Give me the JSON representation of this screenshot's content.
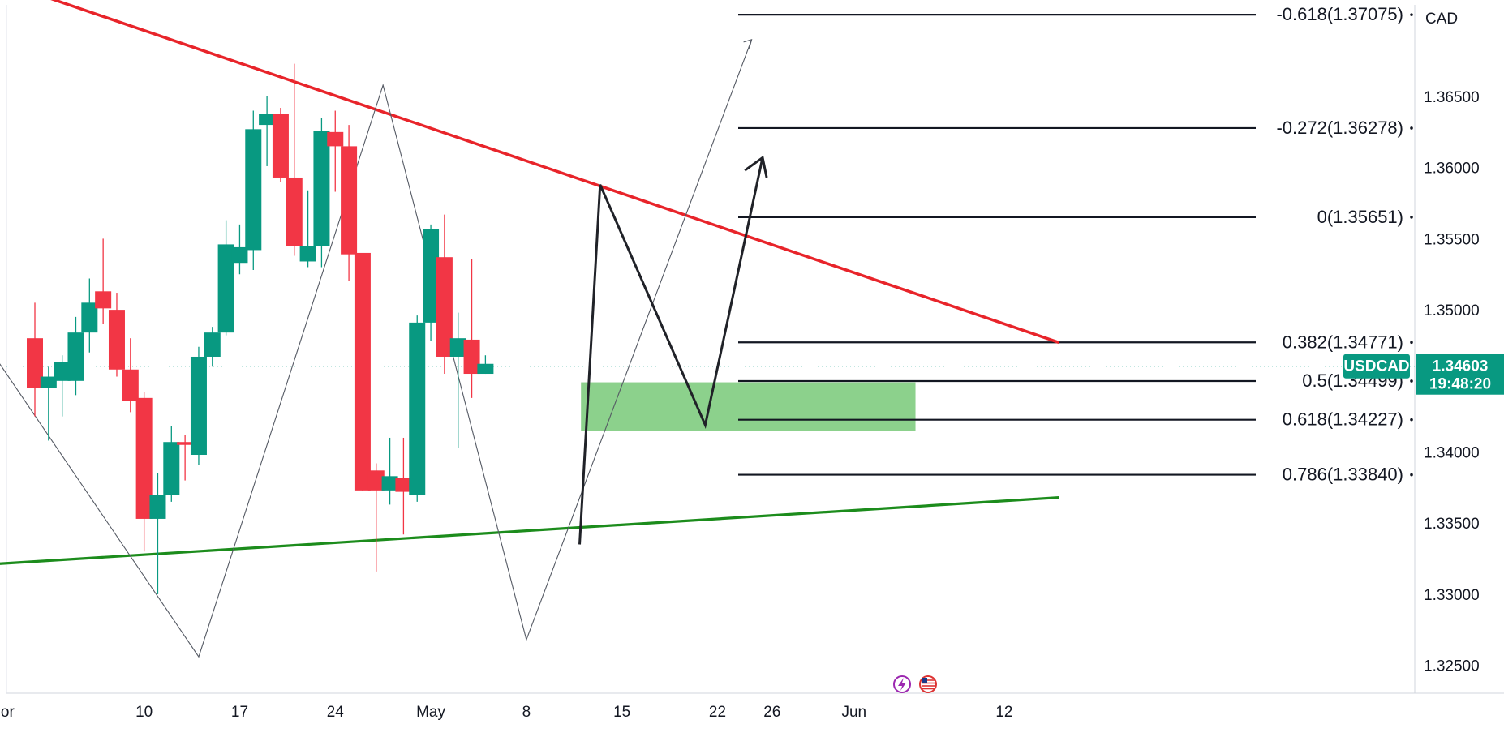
{
  "chart_data": {
    "type": "candlestick",
    "symbol": "USDCAD",
    "currency": "CAD",
    "last_price": "1.34603",
    "countdown": "19:48:20",
    "colors": {
      "up": "#089981",
      "down": "#f23645",
      "resistance": "#e8242a",
      "support": "#1c8c1c",
      "zone": "#5fbf5f",
      "tag": "#089981",
      "line": "#131722"
    },
    "x_ticks": [
      {
        "label": "or",
        "day": -2
      },
      {
        "label": "10",
        "day": 8
      },
      {
        "label": "17",
        "day": 15
      },
      {
        "label": "24",
        "day": 22
      },
      {
        "label": "May",
        "day": 29
      },
      {
        "label": "8",
        "day": 36
      },
      {
        "label": "15",
        "day": 43
      },
      {
        "label": "22",
        "day": 50
      },
      {
        "label": "26",
        "day": 54
      },
      {
        "label": "Jun",
        "day": 60
      },
      {
        "label": "12",
        "day": 71
      }
    ],
    "y_ticks": [
      "1.36500",
      "1.36000",
      "1.35500",
      "1.35000",
      "1.34000",
      "1.33500",
      "1.33000",
      "1.32500"
    ],
    "ylim": [
      1.3215,
      1.373
    ],
    "candles": [
      {
        "o": 1.348,
        "h": 1.3505,
        "l": 1.3425,
        "c": 1.3445
      },
      {
        "o": 1.3445,
        "h": 1.346,
        "l": 1.3408,
        "c": 1.3453
      },
      {
        "o": 1.345,
        "h": 1.3468,
        "l": 1.3425,
        "c": 1.3463
      },
      {
        "o": 1.345,
        "h": 1.3495,
        "l": 1.344,
        "c": 1.3484
      },
      {
        "o": 1.3484,
        "h": 1.3522,
        "l": 1.347,
        "c": 1.3505
      },
      {
        "o": 1.3513,
        "h": 1.355,
        "l": 1.349,
        "c": 1.3501
      },
      {
        "o": 1.35,
        "h": 1.3512,
        "l": 1.3453,
        "c": 1.3458
      },
      {
        "o": 1.3458,
        "h": 1.348,
        "l": 1.3428,
        "c": 1.3436
      },
      {
        "o": 1.3438,
        "h": 1.3442,
        "l": 1.333,
        "c": 1.3353
      },
      {
        "o": 1.3353,
        "h": 1.3385,
        "l": 1.33,
        "c": 1.337
      },
      {
        "o": 1.337,
        "h": 1.3418,
        "l": 1.3365,
        "c": 1.3407
      },
      {
        "o": 1.3407,
        "h": 1.3412,
        "l": 1.338,
        "c": 1.3405
      },
      {
        "o": 1.3398,
        "h": 1.3474,
        "l": 1.3391,
        "c": 1.3467
      },
      {
        "o": 1.3467,
        "h": 1.3488,
        "l": 1.346,
        "c": 1.3484
      },
      {
        "o": 1.3484,
        "h": 1.3563,
        "l": 1.3482,
        "c": 1.3546
      },
      {
        "o": 1.3533,
        "h": 1.356,
        "l": 1.3525,
        "c": 1.3544
      },
      {
        "o": 1.3542,
        "h": 1.364,
        "l": 1.3528,
        "c": 1.3627
      },
      {
        "o": 1.363,
        "h": 1.365,
        "l": 1.3601,
        "c": 1.3638
      },
      {
        "o": 1.3638,
        "h": 1.3642,
        "l": 1.359,
        "c": 1.3593
      },
      {
        "o": 1.3593,
        "h": 1.3673,
        "l": 1.3538,
        "c": 1.3545
      },
      {
        "o": 1.3534,
        "h": 1.3584,
        "l": 1.353,
        "c": 1.3545
      },
      {
        "o": 1.3545,
        "h": 1.3635,
        "l": 1.353,
        "c": 1.3626
      },
      {
        "o": 1.3625,
        "h": 1.364,
        "l": 1.3583,
        "c": 1.3615
      },
      {
        "o": 1.3615,
        "h": 1.363,
        "l": 1.352,
        "c": 1.3539
      },
      {
        "o": 1.354,
        "h": 1.354,
        "l": 1.3373,
        "c": 1.3373
      },
      {
        "o": 1.3387,
        "h": 1.3392,
        "l": 1.3316,
        "c": 1.3373
      },
      {
        "o": 1.3373,
        "h": 1.341,
        "l": 1.3363,
        "c": 1.3383
      },
      {
        "o": 1.3382,
        "h": 1.341,
        "l": 1.3342,
        "c": 1.3372
      },
      {
        "o": 1.337,
        "h": 1.3496,
        "l": 1.3365,
        "c": 1.3491
      },
      {
        "o": 1.3491,
        "h": 1.356,
        "l": 1.3478,
        "c": 1.3557
      },
      {
        "o": 1.3537,
        "h": 1.3567,
        "l": 1.3455,
        "c": 1.3467
      },
      {
        "o": 1.3467,
        "h": 1.3498,
        "l": 1.3403,
        "c": 1.348
      },
      {
        "o": 1.3479,
        "h": 1.3536,
        "l": 1.3438,
        "c": 1.3455
      },
      {
        "o": 1.3455,
        "h": 1.3468,
        "l": 1.3455,
        "c": 1.3462
      }
    ],
    "fib_levels": [
      {
        "label": "-0.618(1.37075)",
        "price": 1.37075
      },
      {
        "label": "-0.272(1.36278)",
        "price": 1.36278
      },
      {
        "label": "0(1.35651)",
        "price": 1.35651
      },
      {
        "label": "0.382(1.34771)",
        "price": 1.34771
      },
      {
        "label": "0.5(1.34499)",
        "price": 1.34499
      },
      {
        "label": "0.618(1.34227)",
        "price": 1.34227
      },
      {
        "label": "0.786(1.33840)",
        "price": 1.3384
      }
    ],
    "zone": {
      "from_day": 40,
      "to_day": 64.5,
      "top": 1.3449,
      "bottom": 1.3415
    },
    "resistance_line": [
      {
        "day": -5,
        "price": 1.3739
      },
      {
        "day": 75,
        "price": 1.3477
      }
    ],
    "support_line": [
      {
        "day": -5,
        "price": 1.332
      },
      {
        "day": 75,
        "price": 1.3368
      }
    ],
    "zigzag": [
      {
        "day": -3,
        "price": 1.3468
      },
      {
        "day": 12,
        "price": 1.3256
      },
      {
        "day": 25.5,
        "price": 1.3658
      },
      {
        "day": 36,
        "price": 1.3268
      },
      {
        "day": 52.5,
        "price": 1.369
      }
    ],
    "projection": [
      {
        "day": 39.9,
        "price": 1.3335
      },
      {
        "day": 41.4,
        "price": 1.3588
      },
      {
        "day": 49.1,
        "price": 1.3419
      },
      {
        "day": 53.3,
        "price": 1.3607
      }
    ],
    "projection_arrow": [
      {
        "day": 52.0,
        "price": 1.3598
      },
      {
        "day": 53.3,
        "price": 1.3607
      },
      {
        "day": 53.6,
        "price": 1.3593
      }
    ],
    "footer_icons": [
      "lightning-icon",
      "us-flag-icon"
    ]
  }
}
